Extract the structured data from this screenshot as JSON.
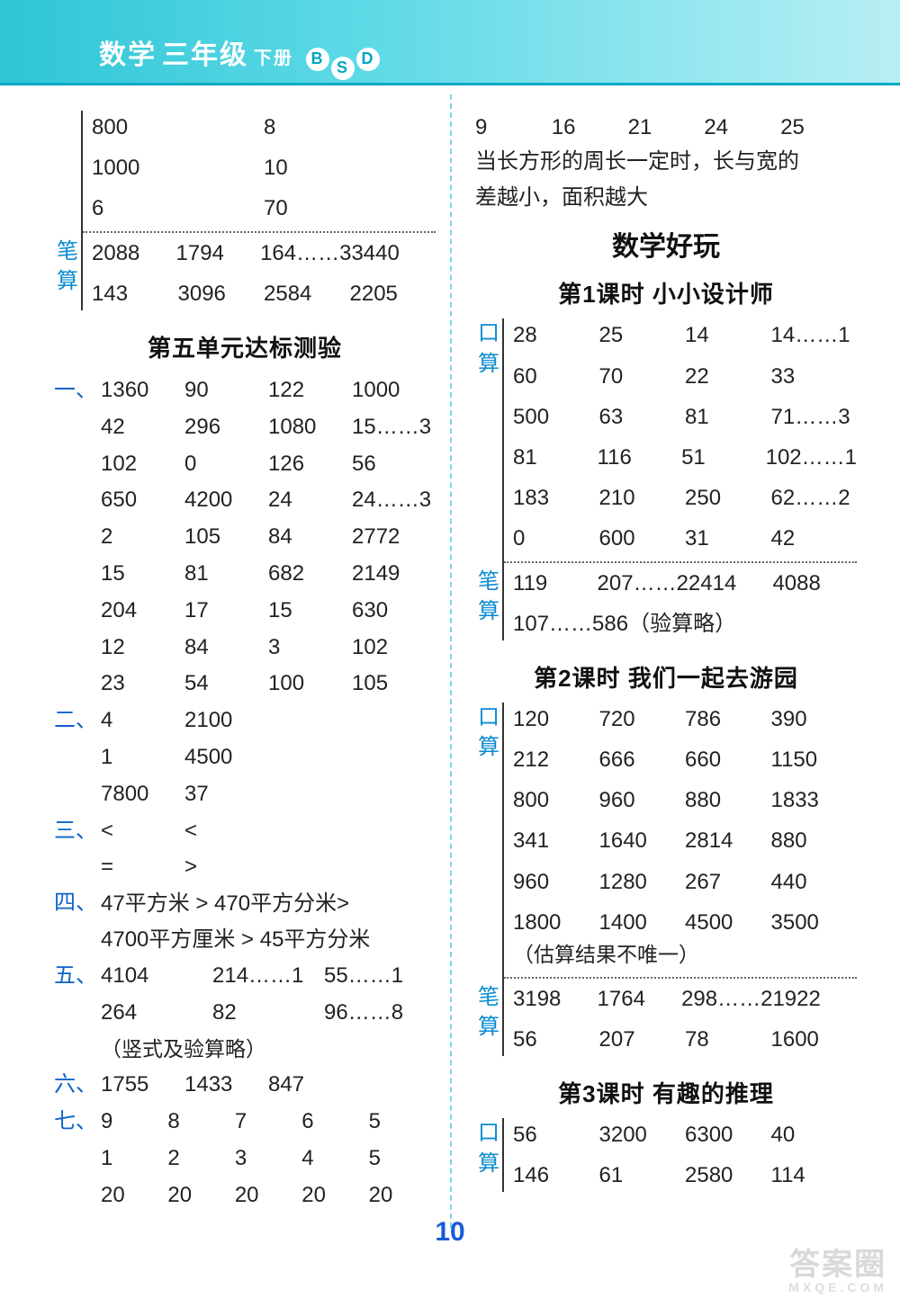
{
  "header": {
    "subject": "数学",
    "grade": "三年级",
    "vol": "下册",
    "b": "B",
    "s": "S",
    "d": "D"
  },
  "page_number": "10",
  "watermark": {
    "big": "答案圈",
    "small": "MXQE.COM"
  },
  "left": {
    "top_simple": {
      "rows": [
        [
          "800",
          "8"
        ],
        [
          "1000",
          "10"
        ],
        [
          "6",
          "70"
        ]
      ]
    },
    "top_pen": {
      "lab1": "笔",
      "lab2": "算",
      "rows": [
        [
          "2088",
          "1794",
          "164……3",
          "3440"
        ],
        [
          "143",
          "3096",
          "2584",
          "2205"
        ]
      ]
    },
    "unit5_title": "第五单元达标测验",
    "q1": {
      "lab": "一、",
      "rows": [
        [
          "1360",
          "90",
          "122",
          "1000"
        ],
        [
          "42",
          "296",
          "1080",
          "15……3"
        ],
        [
          "102",
          "0",
          "126",
          "56"
        ],
        [
          "650",
          "4200",
          "24",
          "24……3"
        ],
        [
          "2",
          "105",
          "84",
          "2772"
        ],
        [
          "15",
          "81",
          "682",
          "2149"
        ],
        [
          "204",
          "17",
          "15",
          "630"
        ],
        [
          "12",
          "84",
          "3",
          "102"
        ],
        [
          "23",
          "54",
          "100",
          "105"
        ]
      ]
    },
    "q2": {
      "lab": "二、",
      "rows": [
        [
          "4",
          "2100"
        ],
        [
          "1",
          "4500"
        ],
        [
          "7800",
          "37"
        ]
      ]
    },
    "q3": {
      "lab": "三、",
      "rows": [
        [
          "<",
          "<"
        ],
        [
          "=",
          ">"
        ]
      ]
    },
    "q4": {
      "lab": "四、",
      "line1": "47平方米 > 470平方分米>",
      "line2": "4700平方厘米 > 45平方分米"
    },
    "q5": {
      "lab": "五、",
      "rows": [
        [
          "4104",
          "214……1",
          "55……1"
        ],
        [
          "264",
          "82",
          "96……8"
        ]
      ],
      "note": "（竖式及验算略）"
    },
    "q6": {
      "lab": "六、",
      "row": [
        "1755",
        "1433",
        "847"
      ]
    },
    "q7": {
      "lab": "七、",
      "rows": [
        [
          "9",
          "8",
          "7",
          "6",
          "5"
        ],
        [
          "1",
          "2",
          "3",
          "4",
          "5"
        ],
        [
          "20",
          "20",
          "20",
          "20",
          "20"
        ]
      ]
    }
  },
  "right": {
    "intro": {
      "row": [
        "9",
        "16",
        "21",
        "24",
        "25"
      ],
      "line1": "当长方形的周长一定时，长与宽的",
      "line2": "差越小，面积越大"
    },
    "big_title": "数学好玩",
    "les1": {
      "title": "第1课时  小小设计师",
      "kou": {
        "lab1": "口",
        "lab2": "算",
        "rows": [
          [
            "28",
            "25",
            "14",
            "14……1"
          ],
          [
            "60",
            "70",
            "22",
            "33"
          ],
          [
            "500",
            "63",
            "81",
            "71……3"
          ],
          [
            "81",
            "116",
            "51",
            "102……1"
          ],
          [
            "183",
            "210",
            "250",
            "62……2"
          ],
          [
            "0",
            "600",
            "31",
            "42"
          ]
        ]
      },
      "pen": {
        "lab1": "笔",
        "lab2": "算",
        "rows": [
          [
            "119",
            "207……2",
            "2414",
            "4088"
          ],
          [
            "107……5",
            "86（验算略）",
            "",
            ""
          ]
        ]
      }
    },
    "les2": {
      "title": "第2课时  我们一起去游园",
      "kou": {
        "lab1": "口",
        "lab2": "算",
        "rows": [
          [
            "120",
            "720",
            "786",
            "390"
          ],
          [
            "212",
            "666",
            "660",
            "1150"
          ],
          [
            "800",
            "960",
            "880",
            "1833"
          ],
          [
            "341",
            "1640",
            "2814",
            "880"
          ],
          [
            "960",
            "1280",
            "267",
            "440"
          ],
          [
            "1800",
            "1400",
            "4500",
            "3500"
          ]
        ],
        "note": "（估算结果不唯一）"
      },
      "pen": {
        "lab1": "笔",
        "lab2": "算",
        "rows": [
          [
            "3198",
            "1764",
            "298……2",
            "1922"
          ],
          [
            "56",
            "207",
            "78",
            "1600"
          ]
        ]
      }
    },
    "les3": {
      "title": "第3课时  有趣的推理",
      "kou": {
        "lab1": "口",
        "lab2": "算",
        "rows": [
          [
            "56",
            "3200",
            "6300",
            "40"
          ],
          [
            "146",
            "61",
            "2580",
            "114"
          ]
        ]
      }
    }
  }
}
